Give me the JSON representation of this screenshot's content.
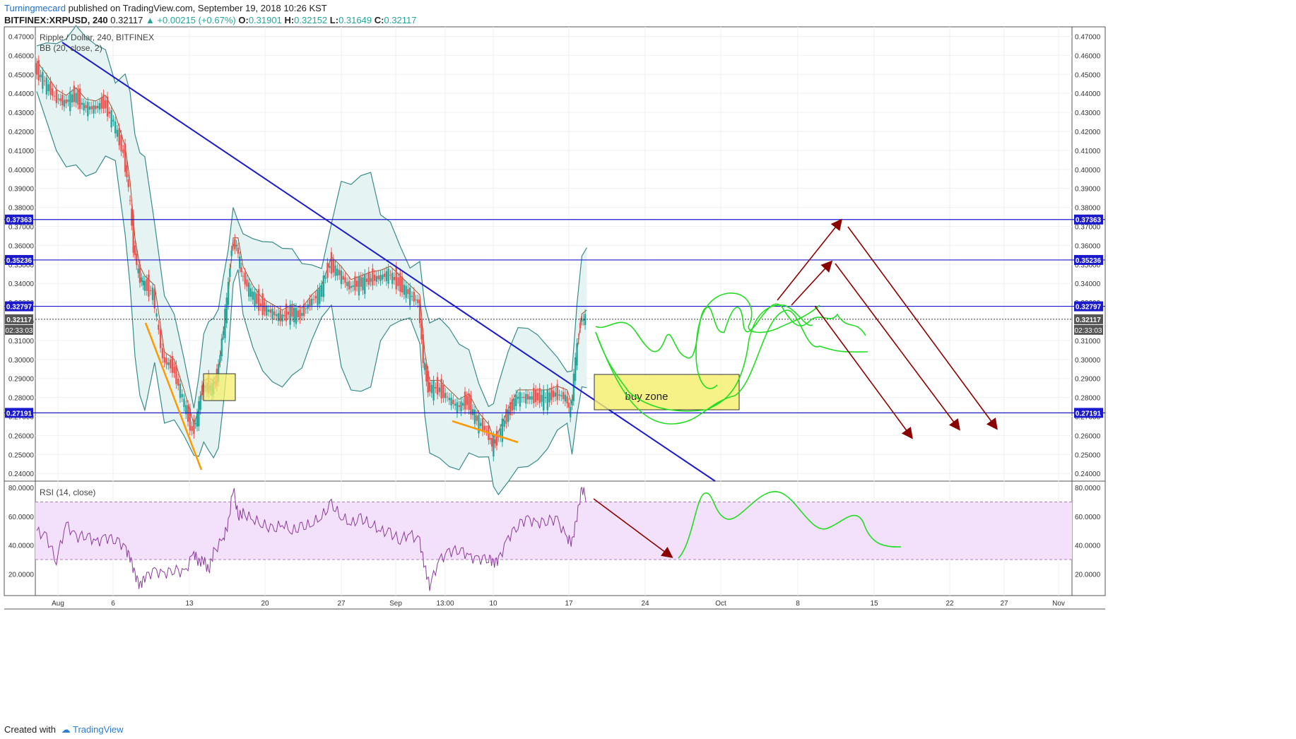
{
  "header": {
    "author": "Turningmecard",
    "published": "published on TradingView.com, September 19, 2018 10:26 KST",
    "symbol_line": "BITFINEX:XRPUSD, 240",
    "last": "0.32117",
    "change": "▲ +0.00215 (+0.67%)",
    "o_label": "O:",
    "o_value": "0.31901",
    "h_label": "H:",
    "h_value": "0.32152",
    "l_label": "L:",
    "l_value": "0.31649",
    "c_label": "C:",
    "c_value": "0.32117"
  },
  "legend": {
    "title": "Ripple / Dollar, 240, BITFINEX",
    "bb": "BB (20, close, 2)",
    "rsi": "RSI (14, close)"
  },
  "annotations": {
    "buy_zone": "buy zone"
  },
  "footer": {
    "created_with": "Created with",
    "brand": "TradingView"
  },
  "colors": {
    "up": "#26a69a",
    "down": "#ef5350",
    "trendline": "#1a1acc",
    "support": "#1a1acc",
    "orange": "#ff9900",
    "green_drawing": "#22dd22",
    "arrow": "#8b0000",
    "bb_band": "#3a8a8a",
    "bb_fill": "#e6f3f3",
    "rsi": "#8a3c9a",
    "rsi_band": "#f3e0fb",
    "buy_zone_fill": "#f5ef6a"
  },
  "chart_data": {
    "type": "candlestick",
    "symbol": "BITFINEX:XRPUSD",
    "interval": "240",
    "price_axis": {
      "ticks": [
        "0.47000",
        "0.46000",
        "0.45000",
        "0.44000",
        "0.43000",
        "0.42000",
        "0.41000",
        "0.40000",
        "0.39000",
        "0.38000",
        "0.37000",
        "0.36000",
        "0.35000",
        "0.34000",
        "0.33000",
        "0.32000",
        "0.31000",
        "0.30000",
        "0.29000",
        "0.28000",
        "0.27000",
        "0.26000",
        "0.25000",
        "0.24000"
      ],
      "range": [
        0.236,
        0.475
      ]
    },
    "horizontal_levels": [
      "0.37363",
      "0.35236",
      "0.32797",
      "0.27191"
    ],
    "current_price": "0.32117",
    "countdown": "02:33:03",
    "x_axis": {
      "labels": [
        "Aug",
        "6",
        "13",
        "20",
        "27",
        "Sep",
        "13:00",
        "10",
        "17",
        "24",
        "Oct",
        "8",
        "15",
        "22",
        "27",
        "Nov"
      ]
    },
    "price_trend": [
      [
        0,
        0.453
      ],
      [
        10,
        0.446
      ],
      [
        20,
        0.438
      ],
      [
        30,
        0.435
      ],
      [
        40,
        0.439
      ],
      [
        50,
        0.433
      ],
      [
        60,
        0.432
      ],
      [
        70,
        0.435
      ],
      [
        80,
        0.425
      ],
      [
        90,
        0.408
      ],
      [
        95,
        0.39
      ],
      [
        100,
        0.36
      ],
      [
        105,
        0.345
      ],
      [
        110,
        0.34
      ],
      [
        120,
        0.335
      ],
      [
        130,
        0.3
      ],
      [
        140,
        0.296
      ],
      [
        150,
        0.28
      ],
      [
        160,
        0.262
      ],
      [
        165,
        0.27
      ],
      [
        170,
        0.285
      ],
      [
        175,
        0.286
      ],
      [
        180,
        0.285
      ],
      [
        185,
        0.29
      ],
      [
        190,
        0.31
      ],
      [
        195,
        0.33
      ],
      [
        200,
        0.36
      ],
      [
        205,
        0.36
      ],
      [
        210,
        0.345
      ],
      [
        220,
        0.335
      ],
      [
        230,
        0.328
      ],
      [
        240,
        0.325
      ],
      [
        250,
        0.322
      ],
      [
        260,
        0.325
      ],
      [
        270,
        0.323
      ],
      [
        280,
        0.33
      ],
      [
        290,
        0.335
      ],
      [
        300,
        0.35
      ],
      [
        310,
        0.345
      ],
      [
        320,
        0.338
      ],
      [
        330,
        0.34
      ],
      [
        340,
        0.342
      ],
      [
        350,
        0.343
      ],
      [
        360,
        0.345
      ],
      [
        370,
        0.34
      ],
      [
        380,
        0.335
      ],
      [
        390,
        0.33
      ],
      [
        395,
        0.3
      ],
      [
        400,
        0.285
      ],
      [
        410,
        0.285
      ],
      [
        420,
        0.28
      ],
      [
        430,
        0.275
      ],
      [
        440,
        0.278
      ],
      [
        450,
        0.268
      ],
      [
        460,
        0.262
      ],
      [
        465,
        0.255
      ],
      [
        470,
        0.258
      ],
      [
        480,
        0.27
      ],
      [
        490,
        0.28
      ],
      [
        500,
        0.28
      ],
      [
        510,
        0.28
      ],
      [
        520,
        0.28
      ],
      [
        530,
        0.282
      ],
      [
        540,
        0.28
      ],
      [
        545,
        0.272
      ],
      [
        550,
        0.3
      ],
      [
        555,
        0.32
      ],
      [
        560,
        0.322
      ]
    ],
    "rsi": {
      "axis_ticks": [
        "80.0000",
        "60.0000",
        "40.0000",
        "20.0000"
      ],
      "range": [
        5,
        83
      ],
      "overbought": 70,
      "oversold": 30,
      "series": [
        [
          0,
          50
        ],
        [
          10,
          45
        ],
        [
          20,
          30
        ],
        [
          30,
          55
        ],
        [
          40,
          45
        ],
        [
          50,
          48
        ],
        [
          60,
          42
        ],
        [
          70,
          45
        ],
        [
          80,
          45
        ],
        [
          90,
          38
        ],
        [
          95,
          32
        ],
        [
          100,
          20
        ],
        [
          105,
          12
        ],
        [
          110,
          18
        ],
        [
          120,
          22
        ],
        [
          130,
          20
        ],
        [
          140,
          24
        ],
        [
          150,
          20
        ],
        [
          160,
          35
        ],
        [
          165,
          28
        ],
        [
          170,
          30
        ],
        [
          175,
          22
        ],
        [
          180,
          35
        ],
        [
          190,
          45
        ],
        [
          195,
          55
        ],
        [
          200,
          80
        ],
        [
          205,
          60
        ],
        [
          210,
          62
        ],
        [
          220,
          58
        ],
        [
          230,
          55
        ],
        [
          240,
          50
        ],
        [
          250,
          55
        ],
        [
          260,
          50
        ],
        [
          270,
          52
        ],
        [
          280,
          55
        ],
        [
          290,
          60
        ],
        [
          300,
          68
        ],
        [
          310,
          60
        ],
        [
          320,
          55
        ],
        [
          330,
          58
        ],
        [
          340,
          55
        ],
        [
          350,
          50
        ],
        [
          360,
          48
        ],
        [
          370,
          44
        ],
        [
          380,
          48
        ],
        [
          390,
          42
        ],
        [
          395,
          25
        ],
        [
          400,
          12
        ],
        [
          410,
          30
        ],
        [
          420,
          35
        ],
        [
          430,
          38
        ],
        [
          440,
          32
        ],
        [
          450,
          30
        ],
        [
          460,
          32
        ],
        [
          465,
          28
        ],
        [
          470,
          30
        ],
        [
          480,
          45
        ],
        [
          490,
          55
        ],
        [
          500,
          58
        ],
        [
          510,
          55
        ],
        [
          520,
          58
        ],
        [
          530,
          57
        ],
        [
          540,
          45
        ],
        [
          545,
          42
        ],
        [
          550,
          60
        ],
        [
          555,
          80
        ],
        [
          560,
          72
        ]
      ]
    }
  }
}
